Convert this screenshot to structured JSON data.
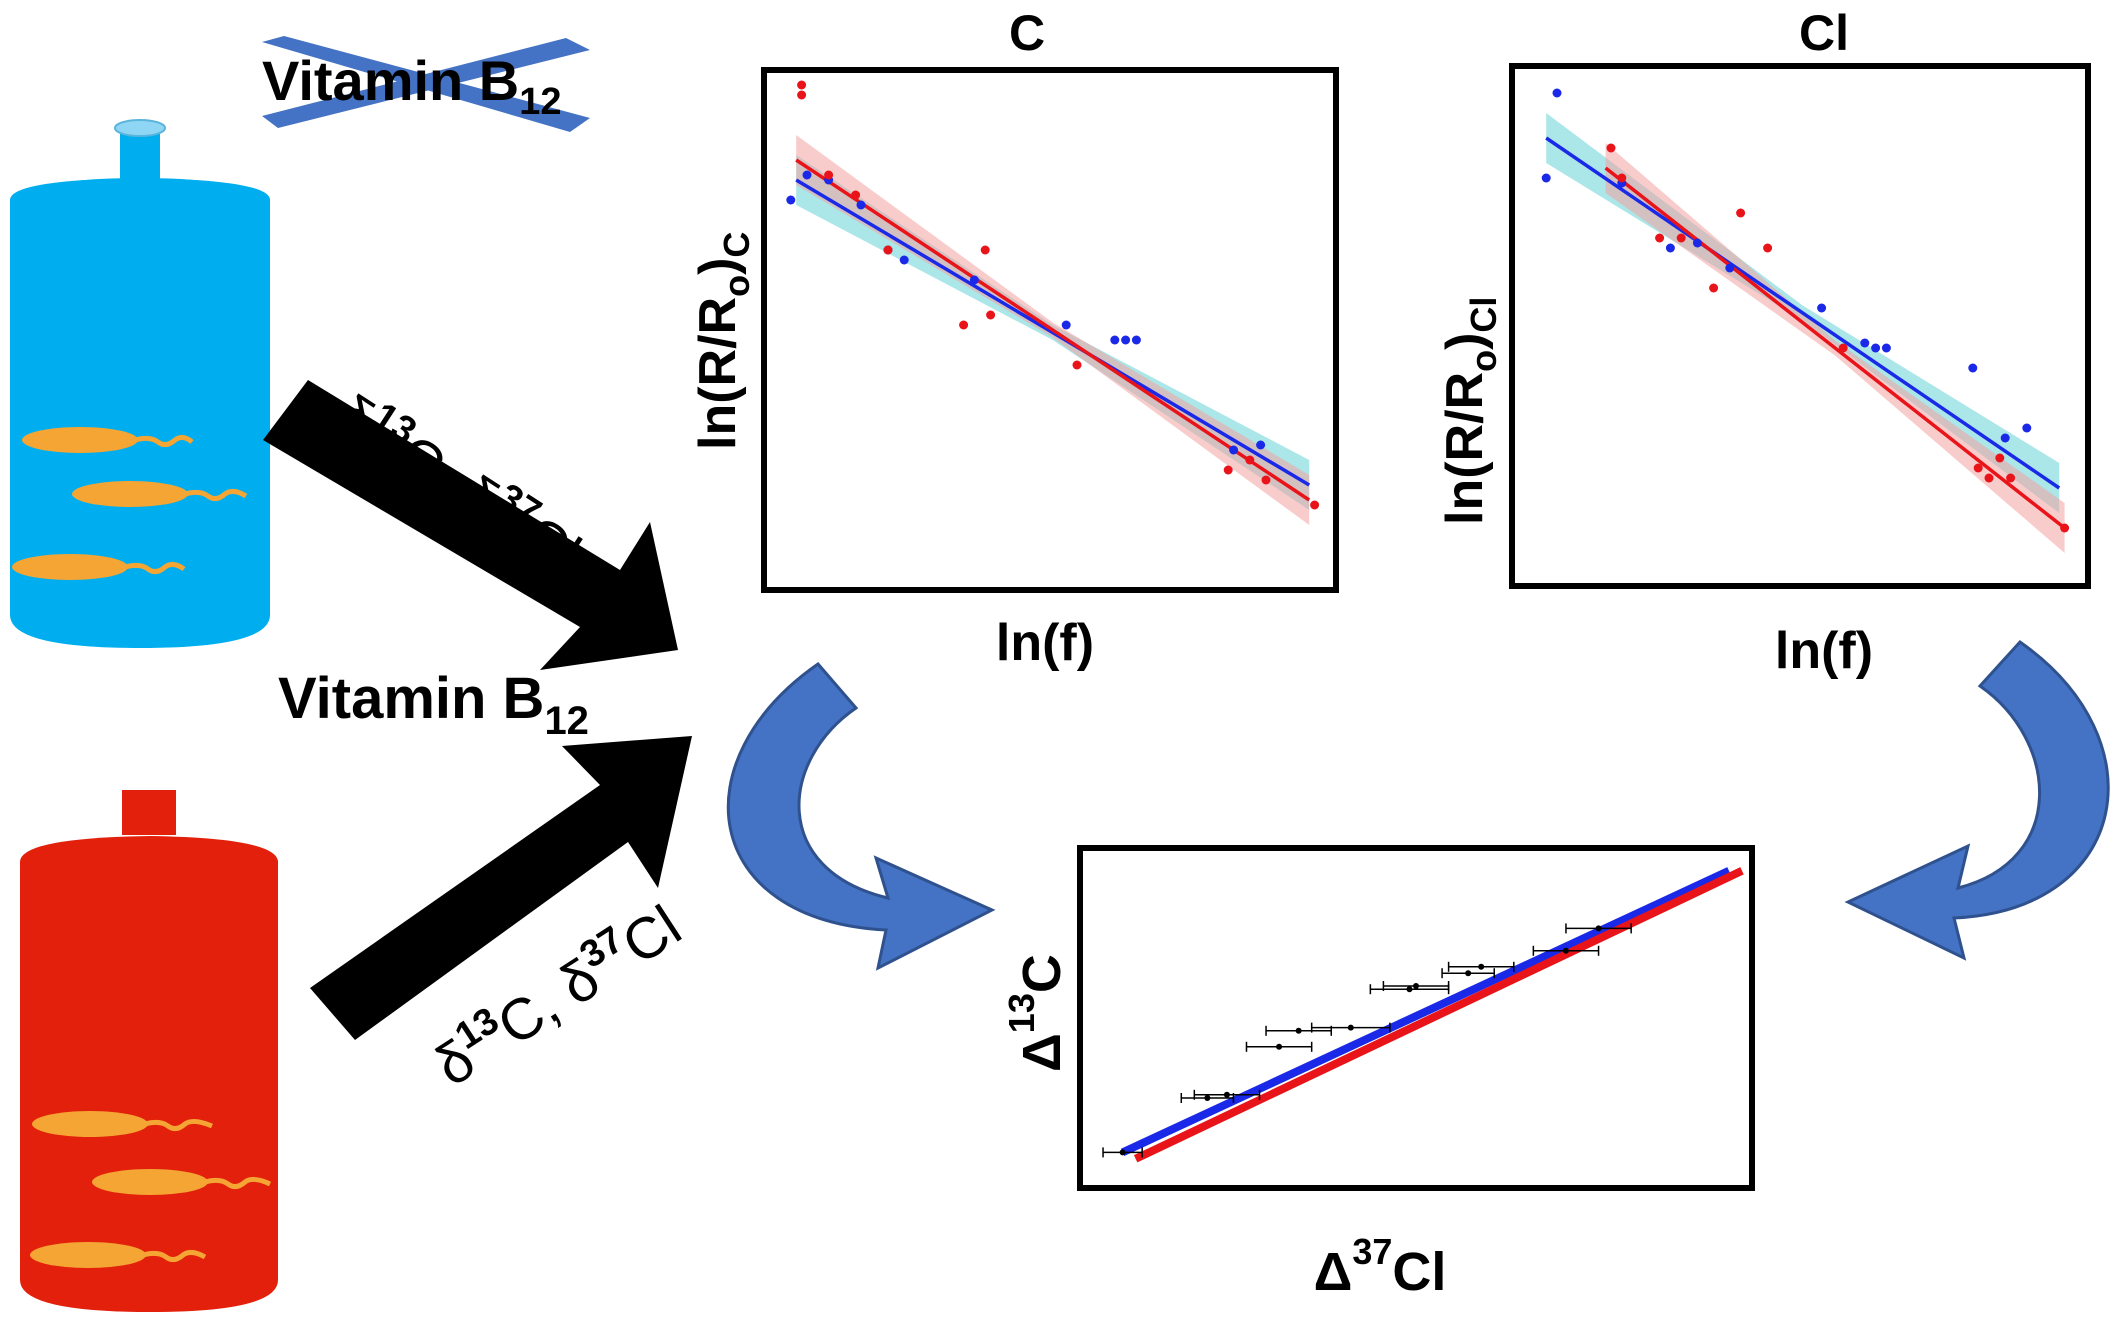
{
  "vitamin_top": {
    "text": "Vitamin B",
    "sub": "12",
    "crossed": true
  },
  "vitamin_middle": {
    "text": "Vitamin B",
    "sub": "12"
  },
  "arrow_top_label": {
    "d1": "δ",
    "sup1": "13",
    "m1": "C, ",
    "d2": "δ",
    "sup2": "37",
    "m2": "Cl"
  },
  "arrow_bottom_label": {
    "d1": "δ",
    "sup1": "13",
    "m1": "C, ",
    "d2": "δ",
    "sup2": "37",
    "m2": "Cl"
  },
  "colors": {
    "blue_bottle": "#00aeef",
    "red_bottle": "#e2200b",
    "bacteria": "#f4a533",
    "series_blue": "#1a28e8",
    "series_red": "#e8141a",
    "band_blue": "#66d1d6",
    "band_red": "#f4a3a3",
    "curved_arrow": "#4472c4"
  },
  "chart_data": [
    {
      "type": "scatter",
      "title": "C",
      "xlabel": "ln(f)",
      "ylabel": {
        "main": "ln(R/R",
        "sub_o": "o",
        "close": ")",
        "sub_c": "C"
      },
      "xlim": [
        0,
        1
      ],
      "ylim": [
        0,
        1
      ],
      "ticks": "none",
      "series": [
        {
          "color": "blue",
          "points": [
            [
              0.02,
              0.76
            ],
            [
              0.05,
              0.81
            ],
            [
              0.09,
              0.8
            ],
            [
              0.15,
              0.75
            ],
            [
              0.2,
              0.66
            ],
            [
              0.23,
              0.64
            ],
            [
              0.36,
              0.6
            ],
            [
              0.53,
              0.51
            ],
            [
              0.62,
              0.48
            ],
            [
              0.64,
              0.48
            ],
            [
              0.66,
              0.48
            ],
            [
              0.84,
              0.26
            ],
            [
              0.89,
              0.27
            ]
          ],
          "fit": [
            [
              0.03,
              0.8
            ],
            [
              0.98,
              0.19
            ]
          ]
        },
        {
          "color": "red",
          "points": [
            [
              0.04,
              0.99
            ],
            [
              0.04,
              0.97
            ],
            [
              0.09,
              0.81
            ],
            [
              0.14,
              0.77
            ],
            [
              0.2,
              0.66
            ],
            [
              0.34,
              0.51
            ],
            [
              0.38,
              0.66
            ],
            [
              0.39,
              0.53
            ],
            [
              0.55,
              0.43
            ],
            [
              0.83,
              0.22
            ],
            [
              0.87,
              0.24
            ],
            [
              0.9,
              0.2
            ],
            [
              0.99,
              0.15
            ]
          ],
          "fit": [
            [
              0.03,
              0.84
            ],
            [
              0.98,
              0.16
            ]
          ]
        }
      ]
    },
    {
      "type": "scatter",
      "title": "Cl",
      "xlabel": "ln(f)",
      "ylabel": {
        "main": "ln(R/R",
        "sub_o": "o",
        "close": ")",
        "sub_c": "Cl"
      },
      "xlim": [
        0,
        1
      ],
      "ylim": [
        0,
        1
      ],
      "ticks": "none",
      "series": [
        {
          "color": "blue",
          "points": [
            [
              0.03,
              0.8
            ],
            [
              0.05,
              0.97
            ],
            [
              0.17,
              0.79
            ],
            [
              0.26,
              0.66
            ],
            [
              0.31,
              0.67
            ],
            [
              0.37,
              0.62
            ],
            [
              0.54,
              0.54
            ],
            [
              0.62,
              0.47
            ],
            [
              0.64,
              0.46
            ],
            [
              0.66,
              0.46
            ],
            [
              0.82,
              0.42
            ],
            [
              0.88,
              0.28
            ],
            [
              0.92,
              0.3
            ]
          ],
          "fit": [
            [
              0.03,
              0.88
            ],
            [
              0.98,
              0.18
            ]
          ]
        },
        {
          "color": "red",
          "points": [
            [
              0.15,
              0.86
            ],
            [
              0.17,
              0.8
            ],
            [
              0.24,
              0.68
            ],
            [
              0.28,
              0.68
            ],
            [
              0.34,
              0.58
            ],
            [
              0.39,
              0.73
            ],
            [
              0.44,
              0.66
            ],
            [
              0.58,
              0.46
            ],
            [
              0.83,
              0.22
            ],
            [
              0.85,
              0.2
            ],
            [
              0.87,
              0.24
            ],
            [
              0.89,
              0.2
            ],
            [
              0.99,
              0.1
            ]
          ],
          "fit": [
            [
              0.14,
              0.82
            ],
            [
              0.99,
              0.1
            ]
          ]
        }
      ]
    },
    {
      "type": "scatter",
      "title": "",
      "xlabel": {
        "main": "Δ",
        "sup": "37",
        "rest": "Cl"
      },
      "ylabel": {
        "main": "Δ",
        "sup": "13",
        "rest": "C"
      },
      "xlim": [
        0,
        1
      ],
      "ylim": [
        0,
        1
      ],
      "ticks": "none",
      "error_bars": true,
      "series": [
        {
          "color": "black",
          "points": [
            [
              0.05,
              0.08
            ],
            [
              0.18,
              0.25
            ],
            [
              0.21,
              0.26
            ],
            [
              0.29,
              0.41
            ],
            [
              0.32,
              0.46
            ],
            [
              0.4,
              0.47
            ],
            [
              0.49,
              0.59
            ],
            [
              0.5,
              0.6
            ],
            [
              0.58,
              0.64
            ],
            [
              0.6,
              0.66
            ],
            [
              0.73,
              0.71
            ],
            [
              0.78,
              0.78
            ]
          ],
          "xerr": [
            0.03,
            0.04,
            0.05,
            0.05,
            0.05,
            0.06,
            0.06,
            0.05,
            0.04,
            0.05,
            0.05,
            0.05
          ]
        },
        {
          "color": "blue",
          "fit": [
            [
              0.05,
              0.08
            ],
            [
              0.98,
              0.96
            ]
          ]
        },
        {
          "color": "red",
          "fit": [
            [
              0.07,
              0.06
            ],
            [
              1.0,
              0.96
            ]
          ]
        }
      ]
    }
  ]
}
